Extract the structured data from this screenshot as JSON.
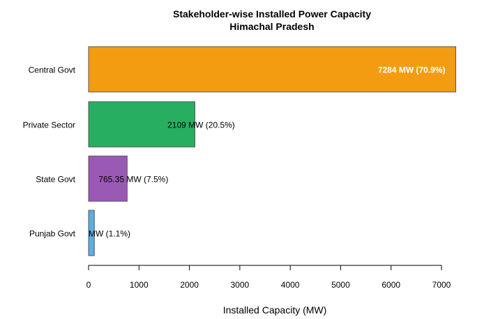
{
  "chart_data": {
    "type": "bar",
    "orientation": "horizontal",
    "title": "Stakeholder-wise Installed Power Capacity",
    "subtitle": "Himachal Pradesh",
    "xlabel": "Installed Capacity (MW)",
    "ylabel": "",
    "xlim": [
      0,
      7300
    ],
    "x_ticks": [
      0,
      1000,
      2000,
      3000,
      4000,
      5000,
      6000,
      7000
    ],
    "grid": false,
    "categories": [
      "Central Govt",
      "Private Sector",
      "State Govt",
      "Punjab Govt"
    ],
    "values": [
      7284,
      2109,
      765.35,
      114
    ],
    "data_labels": [
      "7284 MW (70.9%)",
      "2109 MW (20.5%)",
      "765.35 MW (7.5%)",
      "MW (1.1%)"
    ],
    "colors": [
      "#F39C12",
      "#27AE60",
      "#9B59B6",
      "#5DADE2"
    ]
  }
}
